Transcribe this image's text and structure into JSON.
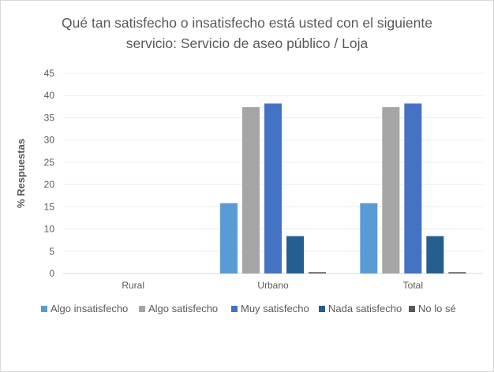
{
  "chart_data": {
    "type": "bar",
    "title_lines": [
      "Qué tan satisfecho o insatisfecho está usted con el siguiente",
      "servicio: Servicio de aseo público / Loja"
    ],
    "ylabel": "% Respuestas",
    "xlabel": "",
    "ylim": [
      0,
      45
    ],
    "yticks": [
      0,
      5,
      10,
      15,
      20,
      25,
      30,
      35,
      40,
      45
    ],
    "grid": true,
    "legend_position": "bottom",
    "categories": [
      "Rural",
      "Urbano",
      "Total"
    ],
    "series": [
      {
        "name": "Algo insatisfecho",
        "color": "#5b9bd5",
        "values": [
          0,
          15.8,
          15.8
        ]
      },
      {
        "name": "Algo satisfecho",
        "color": "#a5a5a5",
        "values": [
          0,
          37.4,
          37.4
        ]
      },
      {
        "name": "Muy satisfecho",
        "color": "#4472c4",
        "values": [
          0,
          38.2,
          38.2
        ]
      },
      {
        "name": "Nada satisfecho",
        "color": "#255e91",
        "values": [
          0,
          8.4,
          8.4
        ]
      },
      {
        "name": "No lo sé",
        "color": "#595959",
        "values": [
          0,
          0.3,
          0.3
        ]
      }
    ]
  }
}
